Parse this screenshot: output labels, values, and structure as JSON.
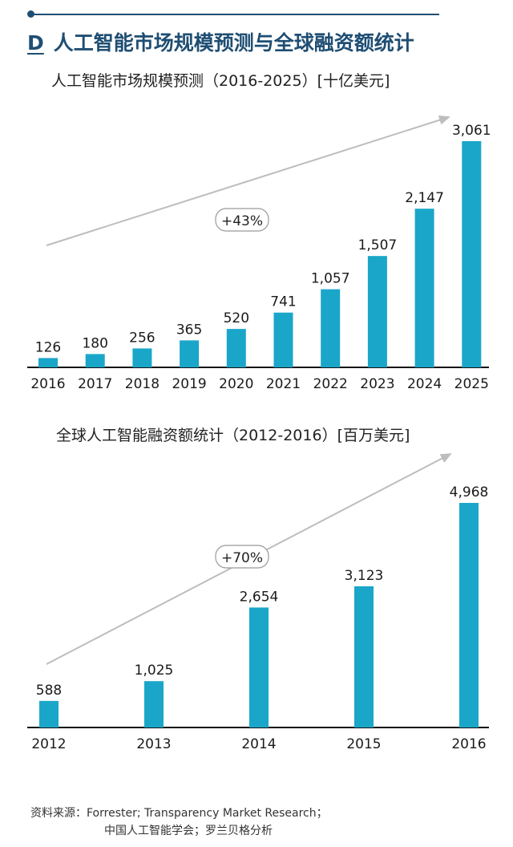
{
  "header": {
    "letter": "D",
    "title": "人工智能市场规模预测与全球融资额统计"
  },
  "colors": {
    "bar": "#1aa6c9",
    "heading": "#1f4e73",
    "arrow": "#bdbdbd"
  },
  "chart_data": [
    {
      "type": "bar",
      "title": "人工智能市场规模预测（2016-2025）[十亿美元]",
      "categories": [
        "2016",
        "2017",
        "2018",
        "2019",
        "2020",
        "2021",
        "2022",
        "2023",
        "2024",
        "2025"
      ],
      "values": [
        126,
        180,
        256,
        365,
        520,
        741,
        1057,
        1507,
        2147,
        3061
      ],
      "labels": [
        "126",
        "180",
        "256",
        "365",
        "520",
        "741",
        "1,057",
        "1,507",
        "2,147",
        "3,061"
      ],
      "growth_annotation": "+43%",
      "xlabel": "",
      "ylabel": "",
      "ylim": [
        0,
        3061
      ]
    },
    {
      "type": "bar",
      "title": "全球人工智能融资额统计（2012-2016）[百万美元]",
      "categories": [
        "2012",
        "2013",
        "2014",
        "2015",
        "2016"
      ],
      "values": [
        588,
        1025,
        2654,
        3123,
        4968
      ],
      "labels": [
        "588",
        "1,025",
        "2,654",
        "3,123",
        "4,968"
      ],
      "growth_annotation": "+70%",
      "xlabel": "",
      "ylabel": "",
      "ylim": [
        0,
        4968
      ]
    }
  ],
  "source": {
    "label": "资料来源：",
    "line1": "Forrester; Transparency Market Research；",
    "line2": "中国人工智能学会；罗兰贝格分析"
  }
}
